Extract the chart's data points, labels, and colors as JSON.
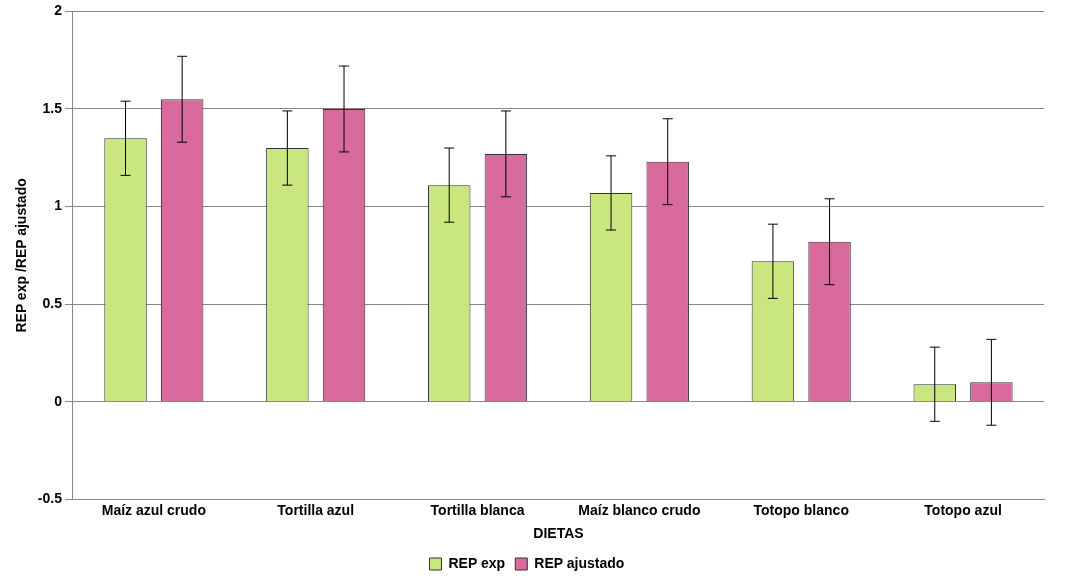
{
  "chart_data": {
    "type": "bar",
    "xlabel": "DIETAS",
    "ylabel": "REP exp /REP ajustado",
    "categories": [
      "Maíz azul crudo",
      "Tortilla azul",
      "Tortilla blanca",
      "Maíz blanco crudo",
      "Totopo blanco",
      "Totopo azul"
    ],
    "series": [
      {
        "name": "REP exp",
        "color": "#c9e67f",
        "values": [
          1.35,
          1.3,
          1.11,
          1.07,
          0.72,
          0.09
        ],
        "errors": [
          0.19,
          0.19,
          0.19,
          0.19,
          0.19,
          0.19
        ]
      },
      {
        "name": "REP ajustado",
        "color": "#d86a9e",
        "values": [
          1.55,
          1.5,
          1.27,
          1.23,
          0.82,
          0.1
        ],
        "errors": [
          0.22,
          0.22,
          0.22,
          0.22,
          0.22,
          0.22
        ]
      }
    ],
    "ylim": [
      -0.5,
      2
    ],
    "yticks": [
      -0.5,
      0,
      0.5,
      1,
      1.5,
      2
    ],
    "grid": "y",
    "legend": "bottom"
  }
}
